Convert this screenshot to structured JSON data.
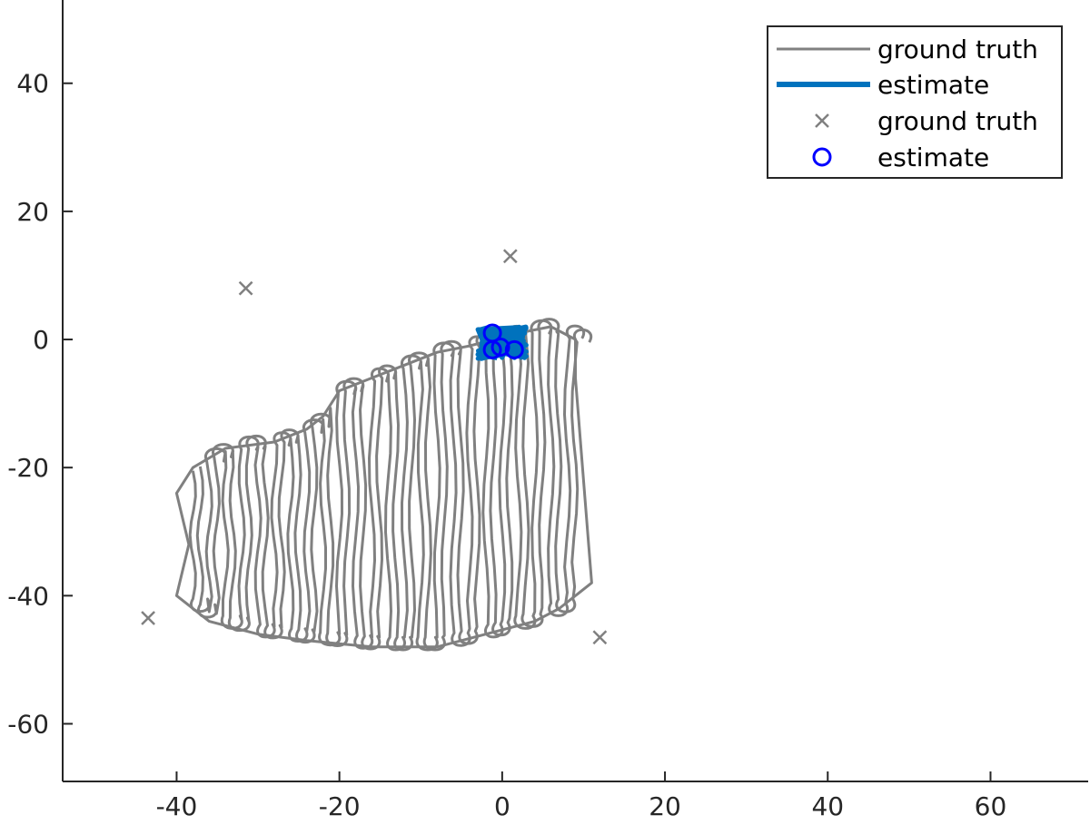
{
  "colors": {
    "ground_truth": "#808080",
    "estimate_line": "#0072BD",
    "estimate_marker": "#0000FF",
    "axis": "#262626"
  },
  "legend": {
    "location": "top-right",
    "entries": [
      {
        "label": "ground truth",
        "kind": "line"
      },
      {
        "label": "estimate",
        "kind": "thick-line"
      },
      {
        "label": "ground truth",
        "kind": "x-marker"
      },
      {
        "label": "estimate",
        "kind": "circle-marker"
      }
    ]
  },
  "chart_data": {
    "type": "line",
    "title": "",
    "xlabel": "",
    "ylabel": "",
    "xlim": [
      -54,
      72
    ],
    "ylim": [
      -69,
      53
    ],
    "xticks": [
      -40,
      -20,
      0,
      20,
      40,
      60
    ],
    "yticks": [
      40,
      20,
      0,
      -20,
      -40,
      -60
    ],
    "grid": false,
    "series": [
      {
        "name": "ground truth",
        "style": "line",
        "description_points": "lawnmower survey path; outer hull vertices",
        "hull": [
          [
            -40,
            -24
          ],
          [
            -38,
            -20
          ],
          [
            -34,
            -17
          ],
          [
            -28,
            -16
          ],
          [
            -24,
            -14
          ],
          [
            -22,
            -12
          ],
          [
            -20,
            -8
          ],
          [
            -16,
            -6
          ],
          [
            -12,
            -4
          ],
          [
            -8,
            -2
          ],
          [
            -4,
            -1
          ],
          [
            2,
            1
          ],
          [
            6,
            2
          ],
          [
            9,
            0
          ],
          [
            9,
            -6
          ],
          [
            10.5,
            -30
          ],
          [
            11,
            -38
          ],
          [
            7,
            -42
          ],
          [
            4,
            -44
          ],
          [
            -2,
            -46
          ],
          [
            -8,
            -48
          ],
          [
            -16,
            -48
          ],
          [
            -24,
            -47
          ],
          [
            -30,
            -46
          ],
          [
            -36,
            -44
          ],
          [
            -40,
            -40
          ],
          [
            -38.5,
            -32
          ]
        ],
        "sweep_x": [
          -38,
          -36,
          -34,
          -32,
          -30,
          -28,
          -26,
          -24,
          -22,
          -20,
          -18,
          -16,
          -14,
          -12,
          -10,
          -8,
          -6,
          -4,
          -2,
          0,
          2,
          4,
          6,
          8
        ]
      },
      {
        "name": "estimate",
        "style": "thick-line",
        "center": [
          0,
          -0.5
        ],
        "spread": [
          3,
          2.5
        ]
      },
      {
        "name": "ground truth",
        "style": "x-marker",
        "points": [
          [
            -43.5,
            -43.5
          ],
          [
            -31.5,
            8
          ],
          [
            1,
            13
          ],
          [
            12,
            -46.5
          ]
        ]
      },
      {
        "name": "estimate",
        "style": "circle-marker",
        "points": [
          [
            -1.2,
            1
          ],
          [
            -1.2,
            -1.6
          ],
          [
            -0.2,
            -1.2
          ],
          [
            1.5,
            -1.6
          ]
        ]
      }
    ]
  }
}
